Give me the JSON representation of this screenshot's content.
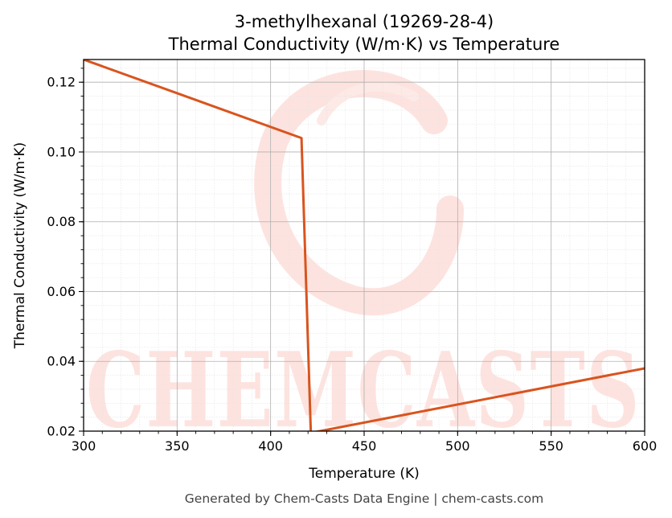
{
  "chart_data": {
    "type": "line",
    "title": "3-methylhexanal (19269-28-4)",
    "subtitle": "Thermal Conductivity (W/m·K) vs Temperature",
    "xlabel": "Temperature (K)",
    "ylabel": "Thermal Conductivity (W/m·K)",
    "xlim": [
      300,
      600
    ],
    "ylim": [
      0.02,
      0.1265
    ],
    "xticks": [
      300,
      350,
      400,
      450,
      500,
      550,
      600
    ],
    "yticks": [
      0.02,
      0.04,
      0.06,
      0.08,
      0.1,
      0.12
    ],
    "ytick_labels": [
      "0.02",
      "0.04",
      "0.06",
      "0.08",
      "0.10",
      "0.12"
    ],
    "grid": true,
    "series": [
      {
        "color": "#d9541e",
        "x": [
          300,
          416.5,
          421.5,
          600
        ],
        "y": [
          0.1265,
          0.104,
          0.0195,
          0.038
        ]
      }
    ]
  },
  "watermark": {
    "text": "CHEMCASTS",
    "color": "#fde3df"
  },
  "footer": "Generated by Chem-Casts Data Engine | chem-casts.com"
}
